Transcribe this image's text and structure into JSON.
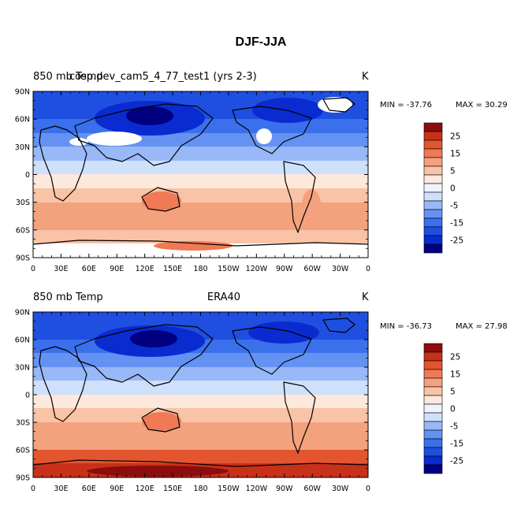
{
  "title": "DJF-JJA",
  "chart_data": [
    {
      "type": "heatmap",
      "left_title": "850 mb Temp",
      "center_title": "cosp.dev_cam5_4_77_test1 (yrs 2-3)",
      "units": "K",
      "min_label": "MIN =  -37.76",
      "max_label": "MAX =  30.29",
      "x_ticks": [
        "0",
        "30E",
        "60E",
        "90E",
        "120E",
        "150E",
        "180",
        "150W",
        "120W",
        "90W",
        "60W",
        "30W",
        "0"
      ],
      "y_ticks": [
        "90N",
        "60N",
        "30N",
        "0",
        "30S",
        "60S",
        "90S"
      ],
      "xlim": [
        0,
        360
      ],
      "ylim": [
        -90,
        90
      ],
      "missing_data": "white regions over Tibetan Plateau, Rocky Mountains, Greenland and Antarctica"
    },
    {
      "type": "heatmap",
      "left_title": "850 mb Temp",
      "center_title": "ERA40",
      "units": "K",
      "min_label": "MIN =  -36.73",
      "max_label": "MAX =  27.98",
      "x_ticks": [
        "0",
        "30E",
        "60E",
        "90E",
        "120E",
        "150E",
        "180",
        "150W",
        "120W",
        "90W",
        "60W",
        "30W",
        "0"
      ],
      "y_ticks": [
        "90N",
        "60N",
        "30N",
        "0",
        "30S",
        "60S",
        "90S"
      ],
      "xlim": [
        0,
        360
      ],
      "ylim": [
        -90,
        90
      ]
    }
  ],
  "colorbar": {
    "labels": [
      "25",
      "15",
      "5",
      "0",
      "-5",
      "-15",
      "-25"
    ],
    "levels": [
      -30,
      -25,
      -20,
      -15,
      -10,
      -5,
      -2.5,
      0,
      2.5,
      5,
      10,
      15,
      20,
      25,
      30
    ],
    "colors": [
      "#000080",
      "#0a2bd0",
      "#1f4fe0",
      "#3a70ec",
      "#6492f2",
      "#98b8f7",
      "#cfe0fb",
      "#eef4fe",
      "#fde8dc",
      "#f9c3a6",
      "#f4a27d",
      "#ef7a55",
      "#e2552f",
      "#c9301a",
      "#8b0d0d"
    ]
  }
}
